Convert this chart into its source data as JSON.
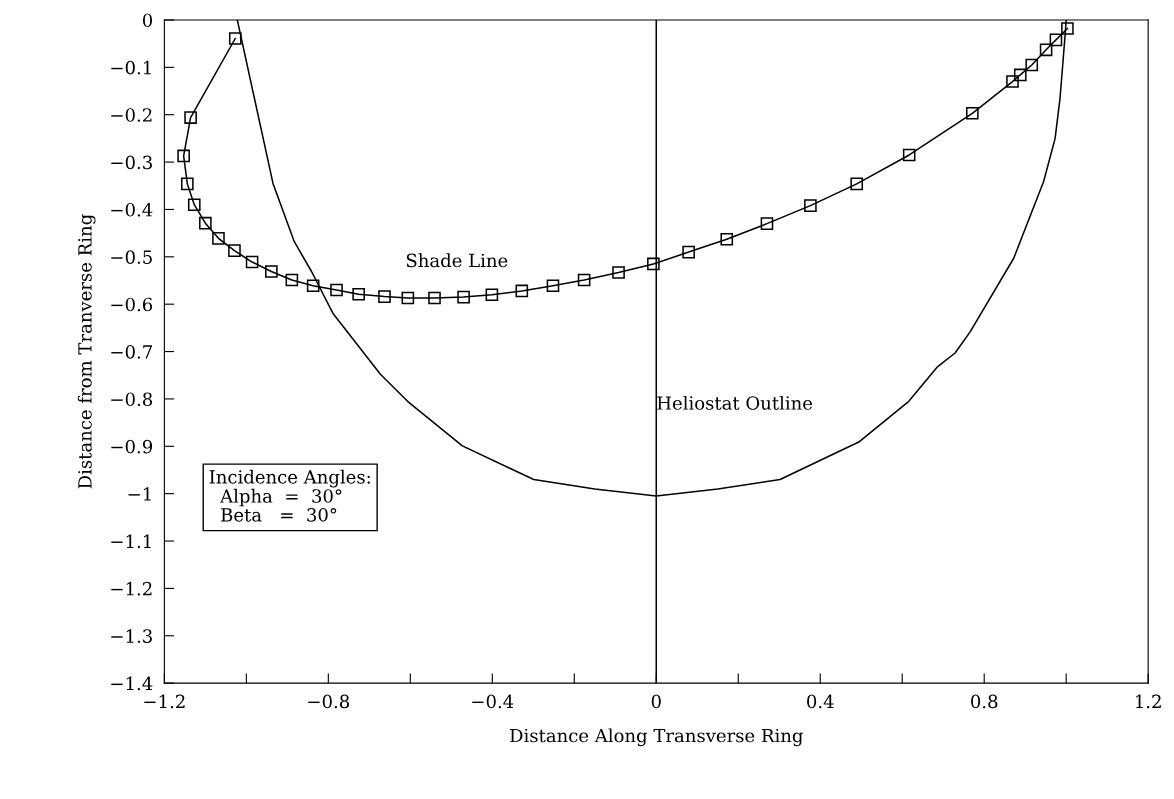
{
  "chart_data": {
    "type": "line",
    "xlabel": "Distance Along Transverse Ring",
    "ylabel": "Distance from Tranverse Ring",
    "xlim": [
      -1.2,
      1.2
    ],
    "ylim": [
      -1.4,
      0
    ],
    "xticks": [
      -1.2,
      {
        "value": -1.0,
        "label": null
      },
      -0.8,
      {
        "value": -0.6,
        "label": null
      },
      -0.4,
      {
        "value": -0.2,
        "label": null
      },
      0,
      {
        "value": 0.2,
        "label": null
      },
      0.4,
      {
        "value": 0.6,
        "label": null
      },
      0.8,
      {
        "value": 1.0,
        "label": null
      },
      1.2
    ],
    "yticks": [
      0,
      -0.1,
      -0.2,
      -0.3,
      -0.4,
      -0.5,
      -0.6,
      -0.7,
      -0.8,
      -0.9,
      -1,
      -1.1,
      -1.2,
      -1.3,
      -1.4
    ],
    "grid": false,
    "series": [
      {
        "name": "Shade Line",
        "color": "#000000",
        "marker": "square",
        "line_style": "solid",
        "x": [
          -1.027,
          -1.136,
          -1.153,
          -1.144,
          -1.127,
          -1.1,
          -1.068,
          -1.029,
          -0.986,
          -0.939,
          -0.889,
          -0.837,
          -0.78,
          -0.726,
          -0.663,
          -0.606,
          -0.541,
          -0.47,
          -0.401,
          -0.328,
          -0.252,
          -0.176,
          -0.092,
          -0.007,
          0.079,
          0.172,
          0.27,
          0.376,
          0.489,
          0.617,
          0.771,
          0.869,
          0.888,
          0.916,
          0.951,
          0.975,
          1.003
        ],
        "values": [
          -0.039,
          -0.206,
          -0.287,
          -0.346,
          -0.39,
          -0.429,
          -0.461,
          -0.487,
          -0.511,
          -0.531,
          -0.549,
          -0.561,
          -0.57,
          -0.579,
          -0.584,
          -0.587,
          -0.587,
          -0.585,
          -0.58,
          -0.572,
          -0.561,
          -0.549,
          -0.533,
          -0.515,
          -0.49,
          -0.463,
          -0.43,
          -0.392,
          -0.346,
          -0.285,
          -0.197,
          -0.13,
          -0.116,
          -0.095,
          -0.063,
          -0.042,
          -0.018
        ]
      },
      {
        "name": "Heliostat Outline",
        "color": "#000000",
        "marker": "none",
        "line_style": "solid",
        "x": [
          -1.022,
          -0.935,
          -0.883,
          -0.841,
          -0.789,
          -0.673,
          -0.603,
          -0.473,
          -0.299,
          -0.15,
          0,
          0.15,
          0.302,
          0.494,
          0.616,
          0.685,
          0.729,
          0.766,
          0.872,
          0.945,
          0.973,
          0.985,
          0.998,
          1.0
        ],
        "values": [
          0,
          -0.345,
          -0.468,
          -0.531,
          -0.619,
          -0.748,
          -0.808,
          -0.899,
          -0.97,
          -0.99,
          -1.005,
          -0.99,
          -0.97,
          -0.891,
          -0.805,
          -0.733,
          -0.703,
          -0.658,
          -0.503,
          -0.341,
          -0.25,
          -0.165,
          -0.025,
          0
        ]
      }
    ],
    "ref_lines": [
      {
        "axis": "x",
        "value": 0,
        "color": "#000000"
      }
    ],
    "annotations": [
      "Incidence Angles:\n  Alpha  =  30°\n  Beta   =  30°"
    ]
  }
}
